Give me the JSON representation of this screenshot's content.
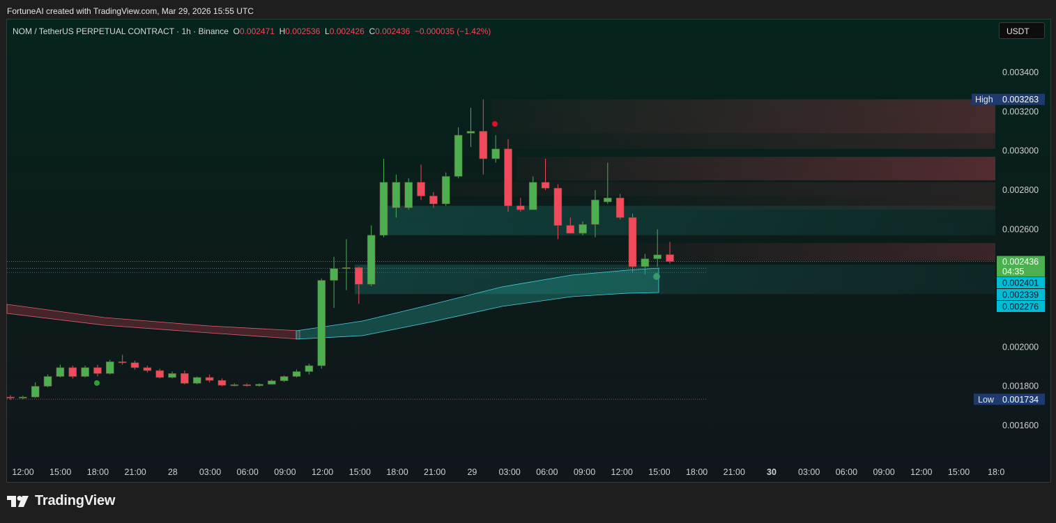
{
  "header": {
    "credit": "FortuneAI created with TradingView.com, Mar 29, 2026 15:55 UTC"
  },
  "legend": {
    "symbol": "NOM / TetherUS PERPETUAL CONTRACT · 1h · Binance",
    "o_key": "O",
    "o_val": "0.002471",
    "h_key": "H",
    "h_val": "0.002536",
    "l_key": "L",
    "l_val": "0.002426",
    "c_key": "C",
    "c_val": "0.002436",
    "change": "−0.000035 (−1.42%)"
  },
  "currency_button": "USDT",
  "brand": {
    "name": "TradingView"
  },
  "colors": {
    "up": "#4caf50",
    "down": "#f2495c",
    "band_up": "#26a69a",
    "band_down": "#c2185b",
    "price_tag": "#4caf50",
    "level_tag": "#00bcd4",
    "extreme_tag": "#1f3a6e"
  },
  "chart_data": {
    "type": "candlestick",
    "ylim": [
      0.00148,
      0.00358
    ],
    "y_ticks": [
      "0.003400",
      "0.003200",
      "0.003000",
      "0.002800",
      "0.002600",
      "0.002000",
      "0.001800",
      "0.001600"
    ],
    "x_ticks": [
      "12:00",
      "15:00",
      "18:00",
      "21:00",
      "28",
      "03:00",
      "06:00",
      "09:00",
      "12:00",
      "15:00",
      "18:00",
      "21:00",
      "29",
      "03:00",
      "06:00",
      "09:00",
      "12:00",
      "15:00",
      "18:00",
      "21:00",
      "30",
      "03:00",
      "06:00",
      "09:00",
      "12:00",
      "15:00",
      "18:0"
    ],
    "high": {
      "label": "High",
      "value": "0.003263"
    },
    "low": {
      "label": "Low",
      "value": "0.001734"
    },
    "last_price": {
      "value": "0.002436",
      "countdown": "04:35"
    },
    "levels": [
      "0.002401",
      "0.002339",
      "0.002276"
    ],
    "candles": [
      {
        "o": 0.001745,
        "h": 0.001755,
        "l": 0.00173,
        "c": 0.00174
      },
      {
        "o": 0.00174,
        "h": 0.001752,
        "l": 0.001734,
        "c": 0.001745
      },
      {
        "o": 0.001745,
        "h": 0.00182,
        "l": 0.00174,
        "c": 0.0018
      },
      {
        "o": 0.0018,
        "h": 0.00186,
        "l": 0.001795,
        "c": 0.00185
      },
      {
        "o": 0.00185,
        "h": 0.00191,
        "l": 0.001845,
        "c": 0.001895
      },
      {
        "o": 0.001895,
        "h": 0.001905,
        "l": 0.00184,
        "c": 0.00185
      },
      {
        "o": 0.00185,
        "h": 0.001905,
        "l": 0.001845,
        "c": 0.001895
      },
      {
        "o": 0.001895,
        "h": 0.00191,
        "l": 0.00185,
        "c": 0.001865
      },
      {
        "o": 0.001865,
        "h": 0.001935,
        "l": 0.00186,
        "c": 0.001925
      },
      {
        "o": 0.001925,
        "h": 0.00196,
        "l": 0.00191,
        "c": 0.00192
      },
      {
        "o": 0.00192,
        "h": 0.00193,
        "l": 0.001885,
        "c": 0.001895
      },
      {
        "o": 0.001895,
        "h": 0.001905,
        "l": 0.00187,
        "c": 0.00188
      },
      {
        "o": 0.00188,
        "h": 0.00189,
        "l": 0.00184,
        "c": 0.001845
      },
      {
        "o": 0.001845,
        "h": 0.001875,
        "l": 0.00184,
        "c": 0.001865
      },
      {
        "o": 0.001865,
        "h": 0.00188,
        "l": 0.00181,
        "c": 0.001815
      },
      {
        "o": 0.001815,
        "h": 0.00185,
        "l": 0.00181,
        "c": 0.001845
      },
      {
        "o": 0.001845,
        "h": 0.00186,
        "l": 0.00182,
        "c": 0.00183
      },
      {
        "o": 0.00183,
        "h": 0.00184,
        "l": 0.0018,
        "c": 0.001805
      },
      {
        "o": 0.001805,
        "h": 0.001815,
        "l": 0.0018,
        "c": 0.001808
      },
      {
        "o": 0.001808,
        "h": 0.001815,
        "l": 0.001798,
        "c": 0.001803
      },
      {
        "o": 0.001803,
        "h": 0.001815,
        "l": 0.001798,
        "c": 0.00181
      },
      {
        "o": 0.00181,
        "h": 0.001835,
        "l": 0.001808,
        "c": 0.001828
      },
      {
        "o": 0.001828,
        "h": 0.001855,
        "l": 0.001822,
        "c": 0.00185
      },
      {
        "o": 0.00185,
        "h": 0.001885,
        "l": 0.001845,
        "c": 0.001875
      },
      {
        "o": 0.001875,
        "h": 0.001915,
        "l": 0.00186,
        "c": 0.001905
      },
      {
        "o": 0.001905,
        "h": 0.00235,
        "l": 0.00189,
        "c": 0.00234
      },
      {
        "o": 0.00234,
        "h": 0.00246,
        "l": 0.0022,
        "c": 0.0024
      },
      {
        "o": 0.0024,
        "h": 0.00255,
        "l": 0.00229,
        "c": 0.002405
      },
      {
        "o": 0.002405,
        "h": 0.00241,
        "l": 0.00222,
        "c": 0.00232
      },
      {
        "o": 0.00232,
        "h": 0.00262,
        "l": 0.00231,
        "c": 0.00257
      },
      {
        "o": 0.00257,
        "h": 0.00296,
        "l": 0.00256,
        "c": 0.00284
      },
      {
        "o": 0.00271,
        "h": 0.00288,
        "l": 0.00266,
        "c": 0.00284
      },
      {
        "o": 0.00271,
        "h": 0.00286,
        "l": 0.0027,
        "c": 0.00284
      },
      {
        "o": 0.00284,
        "h": 0.00293,
        "l": 0.00275,
        "c": 0.00277
      },
      {
        "o": 0.00277,
        "h": 0.00279,
        "l": 0.00271,
        "c": 0.00273
      },
      {
        "o": 0.00273,
        "h": 0.00289,
        "l": 0.00272,
        "c": 0.00287
      },
      {
        "o": 0.00287,
        "h": 0.00312,
        "l": 0.00286,
        "c": 0.00308
      },
      {
        "o": 0.00309,
        "h": 0.00322,
        "l": 0.00302,
        "c": 0.0031
      },
      {
        "o": 0.0031,
        "h": 0.003263,
        "l": 0.00288,
        "c": 0.00296
      },
      {
        "o": 0.00296,
        "h": 0.00308,
        "l": 0.00294,
        "c": 0.00301
      },
      {
        "o": 0.00301,
        "h": 0.00306,
        "l": 0.00269,
        "c": 0.00272
      },
      {
        "o": 0.00272,
        "h": 0.00276,
        "l": 0.00269,
        "c": 0.0027
      },
      {
        "o": 0.0027,
        "h": 0.00287,
        "l": 0.0027,
        "c": 0.00284
      },
      {
        "o": 0.00284,
        "h": 0.00296,
        "l": 0.0028,
        "c": 0.00281
      },
      {
        "o": 0.00281,
        "h": 0.00283,
        "l": 0.00255,
        "c": 0.00262
      },
      {
        "o": 0.00262,
        "h": 0.00266,
        "l": 0.00258,
        "c": 0.00258
      },
      {
        "o": 0.00258,
        "h": 0.00264,
        "l": 0.00257,
        "c": 0.002625
      },
      {
        "o": 0.002625,
        "h": 0.0028,
        "l": 0.00256,
        "c": 0.00275
      },
      {
        "o": 0.00274,
        "h": 0.00294,
        "l": 0.00273,
        "c": 0.00276
      },
      {
        "o": 0.00276,
        "h": 0.00278,
        "l": 0.00265,
        "c": 0.00266
      },
      {
        "o": 0.00266,
        "h": 0.00268,
        "l": 0.00238,
        "c": 0.00241
      },
      {
        "o": 0.00241,
        "h": 0.002475,
        "l": 0.00237,
        "c": 0.00245
      },
      {
        "o": 0.00245,
        "h": 0.0026,
        "l": 0.00241,
        "c": 0.00247
      },
      {
        "o": 0.002471,
        "h": 0.002536,
        "l": 0.002426,
        "c": 0.002436
      }
    ]
  }
}
